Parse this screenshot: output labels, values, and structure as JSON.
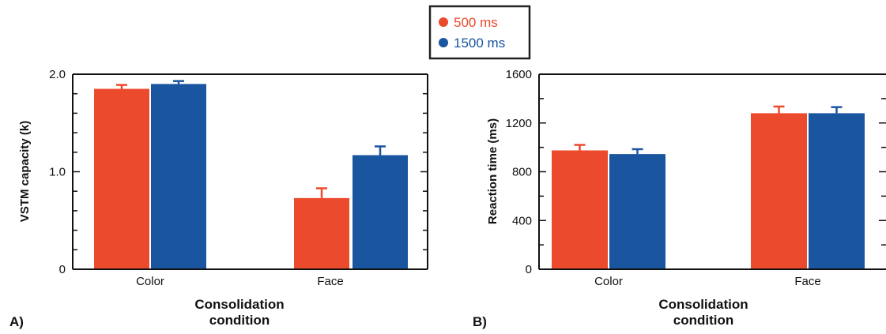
{
  "legend": {
    "items": [
      {
        "label": "500 ms",
        "color": "#ec4a2c"
      },
      {
        "label": "1500 ms",
        "color": "#1a55a0"
      }
    ]
  },
  "chart_data": [
    {
      "type": "bar",
      "panel_label": "A)",
      "categories": [
        "Color",
        "Face"
      ],
      "series": [
        {
          "name": "500 ms",
          "values": [
            1.85,
            0.73
          ],
          "errors": [
            0.04,
            0.1
          ],
          "color": "#ec4a2c"
        },
        {
          "name": "1500 ms",
          "values": [
            1.9,
            1.17
          ],
          "errors": [
            0.03,
            0.09
          ],
          "color": "#1a55a0"
        }
      ],
      "xlabel": [
        "Consolidation",
        "condition"
      ],
      "ylabel": "VSTM capacity (k)",
      "ylim": [
        0,
        2.0
      ],
      "yticks": [
        0,
        1.0,
        2.0
      ],
      "ytick_labels": [
        "0",
        "1.0",
        "2.0"
      ],
      "minor_ticks_per_interval": 5,
      "right_axis_ticks": true
    },
    {
      "type": "bar",
      "panel_label": "B)",
      "categories": [
        "Color",
        "Face"
      ],
      "series": [
        {
          "name": "500 ms",
          "values": [
            975,
            1280
          ],
          "errors": [
            45,
            55
          ],
          "color": "#ec4a2c"
        },
        {
          "name": "1500 ms",
          "values": [
            945,
            1280
          ],
          "errors": [
            40,
            50
          ],
          "color": "#1a55a0"
        }
      ],
      "xlabel": [
        "Consolidation",
        "condition"
      ],
      "ylabel": "Reaction time (ms)",
      "ylim": [
        0,
        1600
      ],
      "yticks": [
        0,
        400,
        800,
        1200,
        1600
      ],
      "ytick_labels": [
        "0",
        "400",
        "800",
        "1200",
        "1600"
      ],
      "minor_ticks_per_interval": 2,
      "right_axis_ticks": true
    }
  ]
}
